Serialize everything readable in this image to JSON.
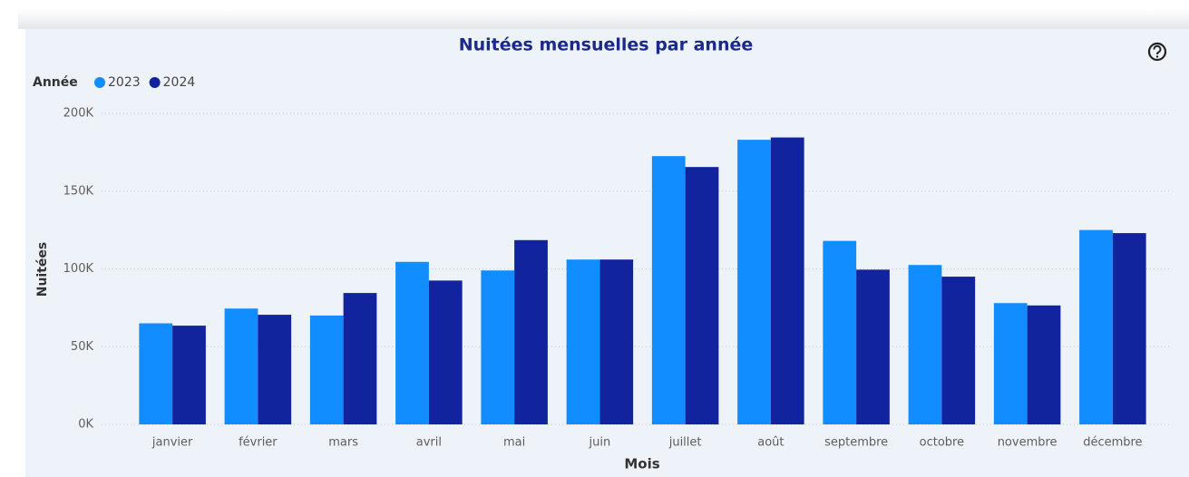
{
  "chart_data": {
    "type": "bar",
    "title": "Nuitées mensuelles par année",
    "legend_title": "Année",
    "x_label": "Mois",
    "y_label": "Nuitées",
    "categories": [
      "janvier",
      "février",
      "mars",
      "avril",
      "mai",
      "juin",
      "juillet",
      "août",
      "septembre",
      "octobre",
      "novembre",
      "décembre"
    ],
    "series": [
      {
        "name": "2023",
        "color": "#118dff",
        "values": [
          65,
          74.5,
          70,
          104.5,
          99,
          106,
          172.5,
          183,
          118,
          102.5,
          78,
          125
        ]
      },
      {
        "name": "2024",
        "color": "#12239e",
        "values": [
          63.5,
          70.5,
          84.5,
          92.5,
          118.5,
          106,
          165.5,
          184.5,
          99.5,
          95,
          76.5,
          123
        ]
      }
    ],
    "ylim": [
      0,
      200
    ],
    "yticks": [
      {
        "value": 0,
        "label": "0K"
      },
      {
        "value": 50,
        "label": "50K"
      },
      {
        "value": 100,
        "label": "100K"
      },
      {
        "value": 150,
        "label": "150K"
      },
      {
        "value": 200,
        "label": "200K"
      }
    ],
    "grid": true,
    "legend": "top-left"
  }
}
